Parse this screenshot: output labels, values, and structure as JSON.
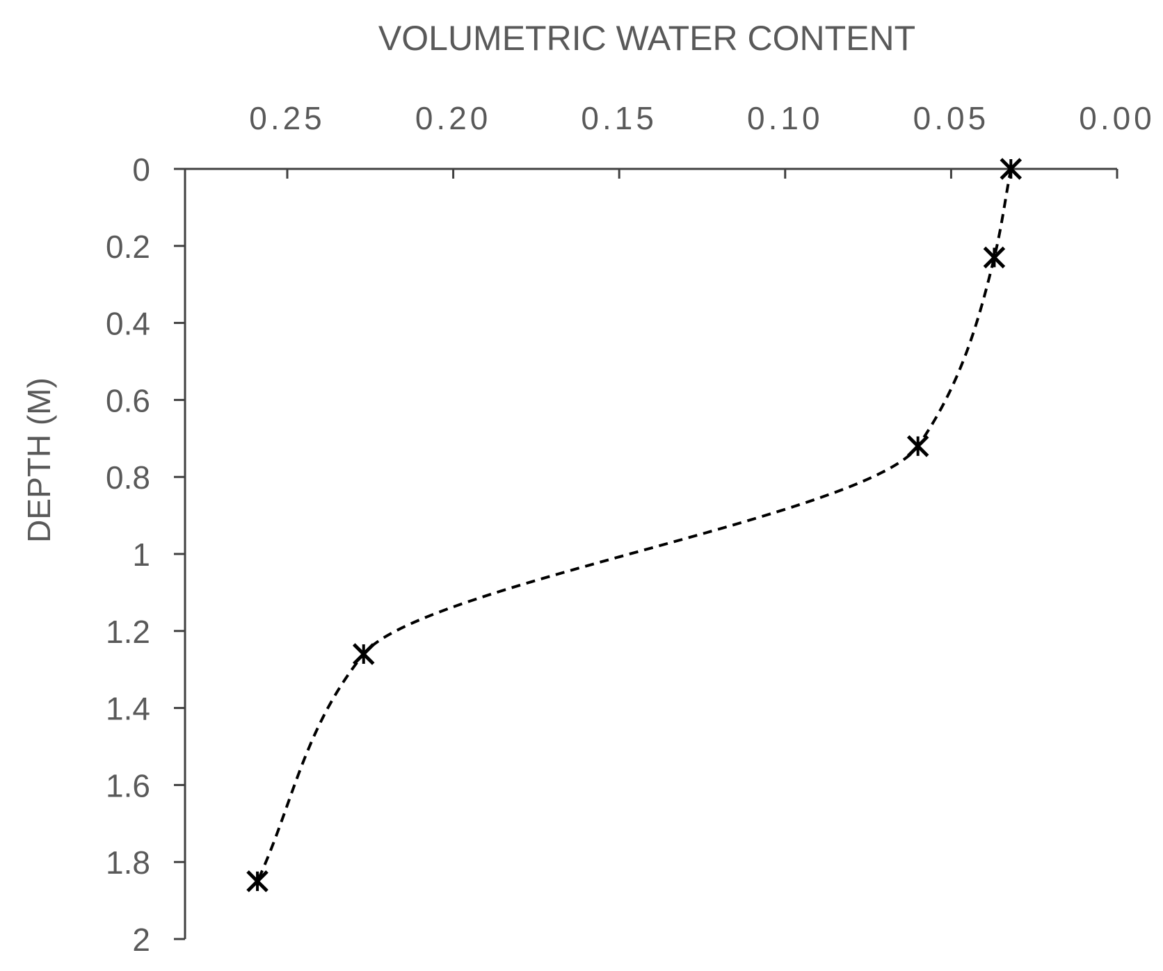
{
  "chart_data": {
    "type": "scatter",
    "title": "",
    "xlabel": "VOLUMETRIC WATER CONTENT",
    "ylabel": "DEPTH (M)",
    "x_axis": {
      "position": "top",
      "reversed": true,
      "range": [
        0.0,
        0.28
      ],
      "ticks": [
        0.25,
        0.2,
        0.15,
        0.1,
        0.05,
        0.0
      ],
      "tick_labels": [
        "0.25",
        "0.20",
        "0.15",
        "0.10",
        "0.05",
        "0.00"
      ]
    },
    "y_axis": {
      "reversed": true,
      "range": [
        0,
        2
      ],
      "ticks": [
        0,
        0.2,
        0.4,
        0.6,
        0.8,
        1,
        1.2,
        1.4,
        1.6,
        1.8,
        2
      ],
      "tick_labels": [
        "0",
        "0.2",
        "0.4",
        "0.6",
        "0.8",
        "1",
        "1.2",
        "1.4",
        "1.6",
        "1.8",
        "2"
      ]
    },
    "grid": false,
    "legend": "none",
    "series": [
      {
        "marker": "x-star",
        "line": "dashed-smooth",
        "color": "#000000",
        "points": [
          {
            "x": 0.032,
            "y": 0.0
          },
          {
            "x": 0.037,
            "y": 0.23
          },
          {
            "x": 0.06,
            "y": 0.72
          },
          {
            "x": 0.227,
            "y": 1.26
          },
          {
            "x": 0.259,
            "y": 1.85
          }
        ]
      }
    ],
    "colors": {
      "axis": "#404040",
      "text": "#595959",
      "series": "#000000"
    }
  }
}
